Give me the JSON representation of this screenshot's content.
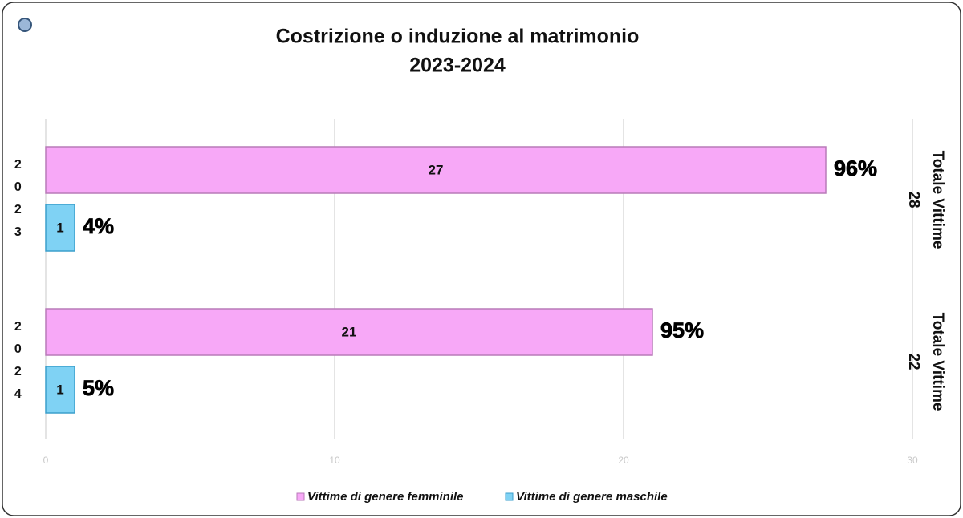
{
  "chart_data": {
    "type": "hbar",
    "title": [
      "Costrizione o induzione al matrimonio",
      "2023-2024"
    ],
    "categories": [
      "2023",
      "2024"
    ],
    "series": [
      {
        "name": "Vittime di genere femminile",
        "color": "#f7a8f7",
        "values": [
          27,
          21
        ],
        "share_labels": [
          "96%",
          "95%"
        ]
      },
      {
        "name": "Vittime di genere maschile",
        "color": "#7fd2f4",
        "values": [
          1,
          1
        ],
        "share_labels": [
          "4%",
          "5%"
        ]
      }
    ],
    "totals": {
      "label": "Totale Vittime",
      "values": [
        28,
        22
      ]
    },
    "xlim": [
      0,
      30
    ],
    "xticks": [
      0,
      10,
      20,
      30
    ],
    "grid": true,
    "legend": "bottom"
  }
}
